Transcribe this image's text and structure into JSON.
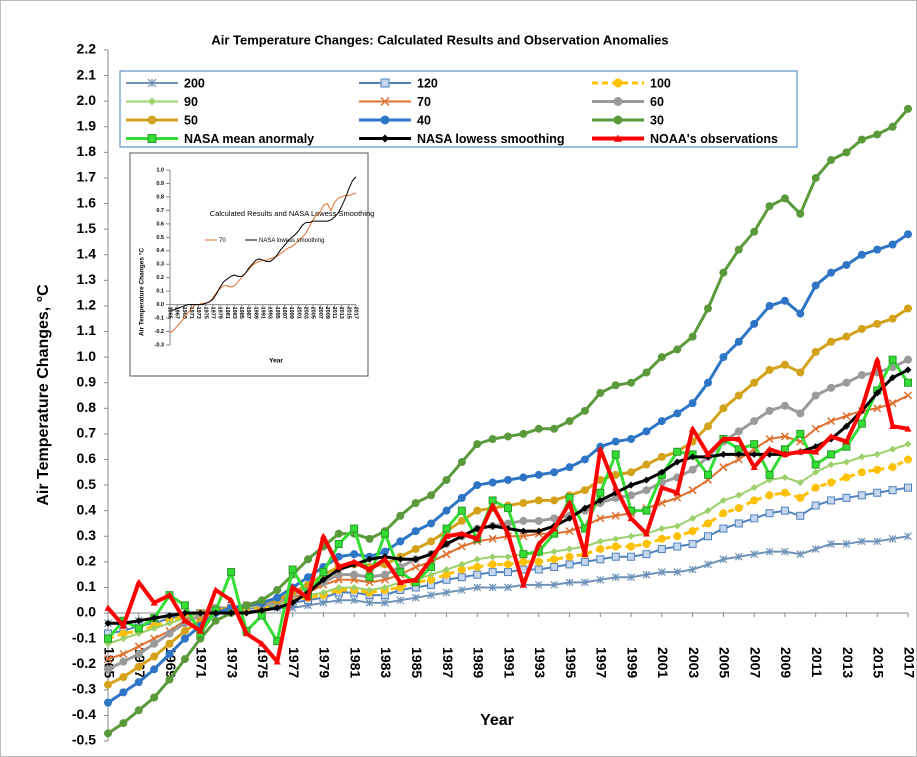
{
  "chart_data": [
    {
      "type": "line",
      "title": "Air Temperature Changes: Calculated Results and Observation Anomalies",
      "x_label": "Year",
      "y_label": "Air Temperature Changes, °C",
      "x": [
        1965,
        1966,
        1967,
        1968,
        1969,
        1970,
        1971,
        1972,
        1973,
        1974,
        1975,
        1976,
        1977,
        1978,
        1979,
        1980,
        1981,
        1982,
        1983,
        1984,
        1985,
        1986,
        1987,
        1988,
        1989,
        1990,
        1991,
        1992,
        1993,
        1994,
        1995,
        1996,
        1997,
        1998,
        1999,
        2000,
        2001,
        2002,
        2003,
        2004,
        2005,
        2006,
        2007,
        2008,
        2009,
        2010,
        2011,
        2012,
        2013,
        2014,
        2015,
        2016,
        2017
      ],
      "xlim": [
        1965,
        2017
      ],
      "xticks": [
        1965,
        1967,
        1969,
        1971,
        1973,
        1975,
        1977,
        1979,
        1981,
        1983,
        1985,
        1987,
        1989,
        1991,
        1993,
        1995,
        1997,
        1999,
        2001,
        2003,
        2005,
        2007,
        2009,
        2011,
        2013,
        2015,
        2017
      ],
      "ylim": [
        -0.5,
        2.2
      ],
      "yticks": [
        -0.5,
        -0.4,
        -0.3,
        -0.2,
        -0.1,
        {
          "value": 0,
          "label": "0.0"
        },
        0.1,
        0.2,
        0.3,
        0.4,
        0.5,
        0.6,
        0.7,
        0.8,
        0.9,
        {
          "value": 1,
          "label": "1.0"
        },
        1.1,
        1.2,
        1.3,
        1.4,
        1.5,
        1.6,
        1.7,
        1.8,
        1.9,
        {
          "value": 2,
          "label": "2.0"
        },
        2.1,
        2.2
      ],
      "grid": false,
      "legend": "top",
      "series": [
        {
          "name": "200",
          "color": "#6f92b8",
          "marker": "asterisk",
          "width": 2,
          "values": [
            -0.04,
            -0.04,
            -0.03,
            -0.02,
            -0.01,
            -0.01,
            0.0,
            0.01,
            0.01,
            0.01,
            0.01,
            0.02,
            0.02,
            0.03,
            0.04,
            0.05,
            0.05,
            0.04,
            0.04,
            0.05,
            0.06,
            0.07,
            0.08,
            0.09,
            0.1,
            0.1,
            0.1,
            0.11,
            0.11,
            0.11,
            0.12,
            0.12,
            0.13,
            0.14,
            0.14,
            0.15,
            0.16,
            0.16,
            0.17,
            0.19,
            0.21,
            0.22,
            0.23,
            0.24,
            0.24,
            0.23,
            0.25,
            0.27,
            0.27,
            0.28,
            0.28,
            0.29,
            0.3
          ]
        },
        {
          "name": "120",
          "color": "#4f81bd",
          "marker": "square",
          "width": 2,
          "values": [
            -0.08,
            -0.07,
            -0.05,
            -0.04,
            -0.02,
            -0.01,
            0.0,
            0.01,
            0.02,
            0.02,
            0.02,
            0.03,
            0.04,
            0.05,
            0.06,
            0.08,
            0.08,
            0.07,
            0.07,
            0.09,
            0.1,
            0.11,
            0.13,
            0.14,
            0.15,
            0.16,
            0.16,
            0.17,
            0.17,
            0.18,
            0.19,
            0.2,
            0.21,
            0.22,
            0.22,
            0.23,
            0.25,
            0.26,
            0.27,
            0.3,
            0.33,
            0.35,
            0.37,
            0.39,
            0.4,
            0.38,
            0.42,
            0.44,
            0.45,
            0.46,
            0.47,
            0.48,
            0.49
          ]
        },
        {
          "name": "100",
          "color": "#ffc000",
          "marker": "circle",
          "dash": true,
          "width": 3,
          "values": [
            -0.1,
            -0.08,
            -0.07,
            -0.05,
            -0.03,
            -0.01,
            0.0,
            0.02,
            0.02,
            0.02,
            0.02,
            0.03,
            0.05,
            0.06,
            0.07,
            0.09,
            0.09,
            0.08,
            0.09,
            0.1,
            0.12,
            0.13,
            0.15,
            0.17,
            0.18,
            0.19,
            0.19,
            0.2,
            0.2,
            0.21,
            0.22,
            0.23,
            0.25,
            0.26,
            0.26,
            0.27,
            0.29,
            0.3,
            0.32,
            0.35,
            0.39,
            0.41,
            0.44,
            0.46,
            0.47,
            0.45,
            0.49,
            0.51,
            0.53,
            0.55,
            0.56,
            0.57,
            0.6
          ]
        },
        {
          "name": "90",
          "color": "#9bd06a",
          "marker": "diamond",
          "width": 2,
          "values": [
            -0.12,
            -0.1,
            -0.08,
            -0.06,
            -0.04,
            -0.02,
            0.0,
            0.02,
            0.02,
            0.02,
            0.03,
            0.03,
            0.05,
            0.07,
            0.08,
            0.1,
            0.1,
            0.09,
            0.1,
            0.12,
            0.13,
            0.15,
            0.17,
            0.19,
            0.21,
            0.22,
            0.22,
            0.23,
            0.23,
            0.24,
            0.25,
            0.26,
            0.28,
            0.29,
            0.3,
            0.31,
            0.33,
            0.34,
            0.37,
            0.4,
            0.44,
            0.46,
            0.49,
            0.52,
            0.53,
            0.51,
            0.55,
            0.58,
            0.59,
            0.61,
            0.62,
            0.64,
            0.66
          ]
        },
        {
          "name": "70",
          "color": "#e0702e",
          "marker": "x",
          "width": 2,
          "values": [
            -0.18,
            -0.16,
            -0.13,
            -0.1,
            -0.07,
            -0.03,
            -0.01,
            0.02,
            0.02,
            0.03,
            0.03,
            0.04,
            0.06,
            0.08,
            0.11,
            0.13,
            0.13,
            0.12,
            0.13,
            0.15,
            0.18,
            0.2,
            0.23,
            0.26,
            0.28,
            0.29,
            0.3,
            0.3,
            0.31,
            0.31,
            0.32,
            0.34,
            0.37,
            0.38,
            0.39,
            0.41,
            0.43,
            0.45,
            0.48,
            0.52,
            0.57,
            0.6,
            0.64,
            0.68,
            0.69,
            0.67,
            0.72,
            0.75,
            0.77,
            0.79,
            0.8,
            0.82,
            0.85
          ]
        },
        {
          "name": "60",
          "color": "#9a9a9a",
          "marker": "circle",
          "width": 3,
          "values": [
            -0.22,
            -0.19,
            -0.16,
            -0.12,
            -0.08,
            -0.04,
            -0.01,
            0.02,
            0.02,
            0.03,
            0.03,
            0.04,
            0.07,
            0.1,
            0.12,
            0.15,
            0.15,
            0.14,
            0.15,
            0.18,
            0.21,
            0.23,
            0.27,
            0.3,
            0.33,
            0.34,
            0.35,
            0.36,
            0.36,
            0.37,
            0.38,
            0.4,
            0.43,
            0.45,
            0.46,
            0.48,
            0.51,
            0.53,
            0.56,
            0.61,
            0.67,
            0.71,
            0.75,
            0.79,
            0.81,
            0.78,
            0.85,
            0.88,
            0.9,
            0.93,
            0.94,
            0.96,
            0.99
          ]
        },
        {
          "name": "50",
          "color": "#d4a21a",
          "marker": "circle",
          "width": 3,
          "values": [
            -0.28,
            -0.25,
            -0.21,
            -0.17,
            -0.12,
            -0.07,
            -0.03,
            0.01,
            0.02,
            0.03,
            0.04,
            0.05,
            0.08,
            0.11,
            0.15,
            0.18,
            0.19,
            0.18,
            0.19,
            0.22,
            0.25,
            0.28,
            0.32,
            0.36,
            0.4,
            0.41,
            0.42,
            0.43,
            0.44,
            0.44,
            0.46,
            0.48,
            0.52,
            0.54,
            0.55,
            0.58,
            0.61,
            0.63,
            0.67,
            0.73,
            0.8,
            0.85,
            0.9,
            0.95,
            0.97,
            0.94,
            1.02,
            1.06,
            1.08,
            1.11,
            1.13,
            1.15,
            1.19
          ]
        },
        {
          "name": "40",
          "color": "#2e75c6",
          "marker": "circle",
          "width": 3,
          "values": [
            -0.35,
            -0.31,
            -0.27,
            -0.22,
            -0.16,
            -0.1,
            -0.05,
            0.0,
            0.02,
            0.03,
            0.04,
            0.06,
            0.1,
            0.14,
            0.18,
            0.22,
            0.23,
            0.22,
            0.24,
            0.28,
            0.32,
            0.35,
            0.4,
            0.45,
            0.5,
            0.51,
            0.52,
            0.53,
            0.54,
            0.55,
            0.57,
            0.6,
            0.65,
            0.67,
            0.68,
            0.71,
            0.75,
            0.78,
            0.82,
            0.9,
            1.0,
            1.06,
            1.13,
            1.2,
            1.22,
            1.17,
            1.28,
            1.33,
            1.36,
            1.4,
            1.42,
            1.44,
            1.48
          ]
        },
        {
          "name": "30",
          "color": "#5a9a3a",
          "marker": "circle",
          "width": 3,
          "values": [
            -0.47,
            -0.43,
            -0.38,
            -0.33,
            -0.26,
            -0.18,
            -0.1,
            -0.03,
            0.0,
            0.03,
            0.05,
            0.09,
            0.15,
            0.21,
            0.26,
            0.31,
            0.31,
            0.29,
            0.32,
            0.38,
            0.43,
            0.46,
            0.52,
            0.59,
            0.66,
            0.68,
            0.69,
            0.7,
            0.72,
            0.72,
            0.75,
            0.79,
            0.86,
            0.89,
            0.9,
            0.94,
            1.0,
            1.03,
            1.08,
            1.19,
            1.33,
            1.42,
            1.49,
            1.59,
            1.62,
            1.56,
            1.7,
            1.77,
            1.8,
            1.85,
            1.87,
            1.9,
            1.97
          ]
        },
        {
          "name": "NASA mean anormaly",
          "color": "#33dd33",
          "marker": "square",
          "width": 3,
          "values": [
            -0.1,
            -0.03,
            -0.06,
            -0.02,
            0.07,
            0.03,
            -0.08,
            0.01,
            0.16,
            -0.07,
            -0.01,
            -0.11,
            0.17,
            0.07,
            0.16,
            0.27,
            0.33,
            0.14,
            0.31,
            0.16,
            0.12,
            0.18,
            0.33,
            0.4,
            0.29,
            0.44,
            0.41,
            0.23,
            0.24,
            0.31,
            0.45,
            0.33,
            0.47,
            0.62,
            0.4,
            0.4,
            0.54,
            0.63,
            0.62,
            0.54,
            0.68,
            0.64,
            0.66,
            0.54,
            0.64,
            0.7,
            0.58,
            0.62,
            0.65,
            0.74,
            0.87,
            0.99,
            0.9
          ]
        },
        {
          "name": "NASA lowess smoothing",
          "color": "#000000",
          "marker": "diamond",
          "width": 3,
          "values": [
            -0.04,
            -0.04,
            -0.03,
            -0.02,
            -0.01,
            0.0,
            0.0,
            0.0,
            0.0,
            0.0,
            0.01,
            0.02,
            0.04,
            0.08,
            0.13,
            0.17,
            0.19,
            0.21,
            0.22,
            0.21,
            0.21,
            0.23,
            0.27,
            0.3,
            0.33,
            0.34,
            0.33,
            0.32,
            0.32,
            0.34,
            0.37,
            0.41,
            0.44,
            0.47,
            0.5,
            0.52,
            0.55,
            0.59,
            0.61,
            0.61,
            0.62,
            0.62,
            0.62,
            0.62,
            0.62,
            0.63,
            0.65,
            0.68,
            0.73,
            0.79,
            0.86,
            0.92,
            0.95
          ]
        },
        {
          "name": "NOAA's observations",
          "color": "#ff0000",
          "marker": "triangle",
          "width": 4,
          "values": [
            0.02,
            -0.05,
            0.12,
            0.04,
            0.07,
            -0.03,
            -0.07,
            0.09,
            0.05,
            -0.08,
            -0.12,
            -0.19,
            0.1,
            0.06,
            0.3,
            0.18,
            0.2,
            0.17,
            0.21,
            0.12,
            0.13,
            0.21,
            0.3,
            0.31,
            0.29,
            0.42,
            0.31,
            0.11,
            0.27,
            0.33,
            0.43,
            0.23,
            0.64,
            0.49,
            0.37,
            0.31,
            0.49,
            0.47,
            0.72,
            0.62,
            0.68,
            0.68,
            0.57,
            0.64,
            0.62,
            0.63,
            0.63,
            0.69,
            0.67,
            0.8,
            0.99,
            0.73,
            0.72
          ]
        }
      ]
    },
    {
      "type": "line",
      "title": "Calculated Results and NASA Lowess Smoothing",
      "x_label": "Year",
      "y_label": "Air Temperature Changes °C",
      "x": [
        1965,
        1966,
        1967,
        1968,
        1969,
        1970,
        1971,
        1972,
        1973,
        1974,
        1975,
        1976,
        1977,
        1978,
        1979,
        1980,
        1981,
        1982,
        1983,
        1984,
        1985,
        1986,
        1987,
        1988,
        1989,
        1990,
        1991,
        1992,
        1993,
        1994,
        1995,
        1996,
        1997,
        1998,
        1999,
        2000,
        2001,
        2002,
        2003,
        2004,
        2005,
        2006,
        2007,
        2008,
        2009,
        2010,
        2011,
        2012,
        2013,
        2014,
        2015,
        2016,
        2017
      ],
      "xlim": [
        1965,
        2017
      ],
      "xticks": [
        1965,
        1967,
        1969,
        1971,
        1973,
        1975,
        1977,
        1979,
        1981,
        1983,
        1985,
        1987,
        1989,
        1991,
        1993,
        1995,
        1997,
        1999,
        2001,
        2003,
        2005,
        2007,
        2009,
        2011,
        2013,
        2015,
        2017
      ],
      "ylim": [
        -0.3,
        1.0
      ],
      "yticks": [
        -0.3,
        -0.2,
        -0.1,
        {
          "value": 0,
          "label": "0.0"
        },
        0.1,
        0.2,
        0.3,
        0.4,
        0.5,
        0.6,
        0.7,
        0.8,
        0.9,
        {
          "value": 1,
          "label": "1.0"
        }
      ],
      "legend": "upper left",
      "series": [
        {
          "name": "70",
          "color": "#e0702e",
          "width": 1,
          "values": [
            -0.21,
            -0.19,
            -0.16,
            -0.13,
            -0.1,
            -0.06,
            -0.03,
            0.0,
            0.0,
            0.01,
            0.01,
            0.02,
            0.05,
            0.09,
            0.12,
            0.14,
            0.14,
            0.13,
            0.14,
            0.17,
            0.2,
            0.23,
            0.26,
            0.29,
            0.31,
            0.32,
            0.33,
            0.33,
            0.34,
            0.35,
            0.36,
            0.38,
            0.4,
            0.42,
            0.43,
            0.45,
            0.48,
            0.5,
            0.53,
            0.58,
            0.63,
            0.67,
            0.69,
            0.74,
            0.75,
            0.7,
            0.76,
            0.79,
            0.8,
            0.81,
            0.81,
            0.82,
            0.83
          ]
        },
        {
          "name": "NASA lowess smoothing",
          "color": "#000000",
          "width": 1,
          "values": [
            -0.04,
            -0.04,
            -0.03,
            -0.02,
            -0.01,
            0.0,
            0.0,
            0.0,
            0.0,
            0.0,
            0.01,
            0.02,
            0.04,
            0.08,
            0.13,
            0.17,
            0.19,
            0.21,
            0.22,
            0.21,
            0.21,
            0.23,
            0.27,
            0.3,
            0.33,
            0.34,
            0.33,
            0.32,
            0.32,
            0.34,
            0.37,
            0.41,
            0.44,
            0.47,
            0.5,
            0.52,
            0.55,
            0.59,
            0.61,
            0.61,
            0.62,
            0.62,
            0.62,
            0.62,
            0.62,
            0.63,
            0.65,
            0.68,
            0.73,
            0.79,
            0.86,
            0.92,
            0.95
          ]
        }
      ]
    }
  ]
}
